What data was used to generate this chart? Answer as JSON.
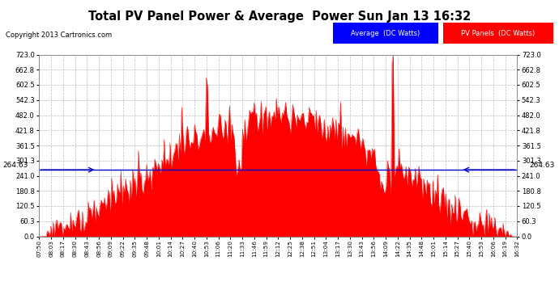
{
  "title": "Total PV Panel Power & Average  Power Sun Jan 13 16:32",
  "copyright": "Copyright 2013 Cartronics.com",
  "average_value": 264.63,
  "y_max": 723.0,
  "y_min": 0.0,
  "y_ticks": [
    0.0,
    60.3,
    120.5,
    180.8,
    241.0,
    301.3,
    361.5,
    421.8,
    482.0,
    542.3,
    602.5,
    662.8,
    723.0
  ],
  "background_color": "#ffffff",
  "fill_color": "#ff0000",
  "line_color": "#ff0000",
  "average_line_color": "#0000cc",
  "grid_color": "#bbbbbb",
  "title_color": "#000000",
  "legend_avg_bg": "#0000ff",
  "legend_pv_bg": "#ff0000",
  "x_labels": [
    "07:50",
    "08:03",
    "08:17",
    "08:30",
    "08:43",
    "08:56",
    "09:09",
    "09:22",
    "09:35",
    "09:48",
    "10:01",
    "10:14",
    "10:27",
    "10:40",
    "10:53",
    "11:06",
    "11:20",
    "11:33",
    "11:46",
    "11:59",
    "12:12",
    "12:25",
    "12:38",
    "12:51",
    "13:04",
    "13:17",
    "13:30",
    "13:43",
    "13:56",
    "14:09",
    "14:22",
    "14:35",
    "14:48",
    "15:01",
    "15:14",
    "15:27",
    "15:40",
    "15:53",
    "16:06",
    "16:19",
    "16:32"
  ]
}
